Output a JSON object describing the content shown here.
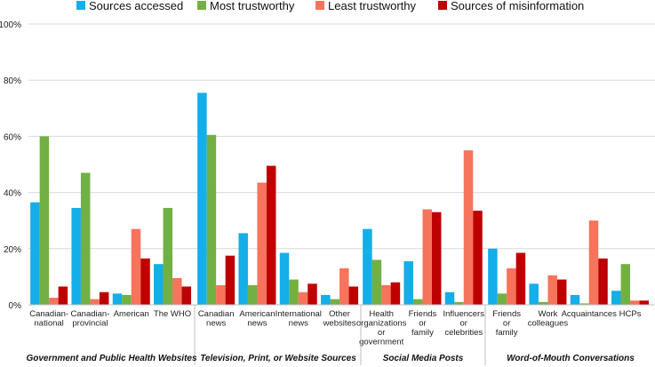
{
  "chart_data": {
    "type": "bar",
    "title": "",
    "xlabel": "",
    "ylabel": "",
    "ylim": [
      0,
      100
    ],
    "yticks": [
      "0%",
      "20%",
      "40%",
      "60%",
      "80%",
      "100%"
    ],
    "legend_position": "top",
    "series": [
      {
        "name": "Sources accessed",
        "color": "#14aee8"
      },
      {
        "name": "Most trustworthy",
        "color": "#72b043"
      },
      {
        "name": "Least trustworthy",
        "color": "#f6735c"
      },
      {
        "name": "Sources of misinformation",
        "color": "#bf0000"
      }
    ],
    "groups": [
      {
        "name": "Government and Public Health Websites",
        "categories": [
          {
            "label": [
              "Canadian-",
              "national"
            ],
            "values": [
              36.5,
              60,
              2.5,
              6.5
            ]
          },
          {
            "label": [
              "Canadian-",
              "provincial"
            ],
            "values": [
              34.5,
              47,
              2,
              4.5
            ]
          },
          {
            "label": [
              "American"
            ],
            "values": [
              4,
              3.5,
              27,
              16.5
            ]
          },
          {
            "label": [
              "The WHO"
            ],
            "values": [
              14.5,
              34.5,
              9.5,
              6.5
            ]
          }
        ]
      },
      {
        "name": "Television, Print, or Website Sources",
        "categories": [
          {
            "label": [
              "Canadian",
              "news"
            ],
            "values": [
              75.5,
              60.5,
              7,
              17.5
            ]
          },
          {
            "label": [
              "American",
              "news"
            ],
            "values": [
              25.5,
              7,
              43.5,
              49.5
            ]
          },
          {
            "label": [
              "International",
              "news"
            ],
            "values": [
              18.5,
              9,
              4.5,
              7.5
            ]
          },
          {
            "label": [
              "Other",
              "websites"
            ],
            "values": [
              3.5,
              2,
              13,
              6.5
            ]
          }
        ]
      },
      {
        "name": "Social Media Posts",
        "categories": [
          {
            "label": [
              "Health",
              "organizations",
              "or",
              "government"
            ],
            "values": [
              27,
              16,
              7,
              8
            ]
          },
          {
            "label": [
              "Friends",
              "or",
              "family"
            ],
            "values": [
              15.5,
              2,
              34,
              33
            ]
          },
          {
            "label": [
              "Influencers",
              "or",
              "celebrities"
            ],
            "values": [
              4.5,
              1,
              55,
              33.5
            ]
          }
        ]
      },
      {
        "name": "Word-of-Mouth Conversations",
        "categories": [
          {
            "label": [
              "Friends",
              "or",
              "family"
            ],
            "values": [
              20,
              4,
              13,
              18.5
            ]
          },
          {
            "label": [
              "Work",
              "colleagues"
            ],
            "values": [
              7.5,
              1,
              10.5,
              9
            ]
          },
          {
            "label": [
              "Acquaintances"
            ],
            "values": [
              3.5,
              0.5,
              30,
              16.5
            ]
          },
          {
            "label": [
              "HCPs"
            ],
            "values": [
              5,
              14.5,
              1.5,
              1.5
            ]
          }
        ]
      }
    ]
  }
}
